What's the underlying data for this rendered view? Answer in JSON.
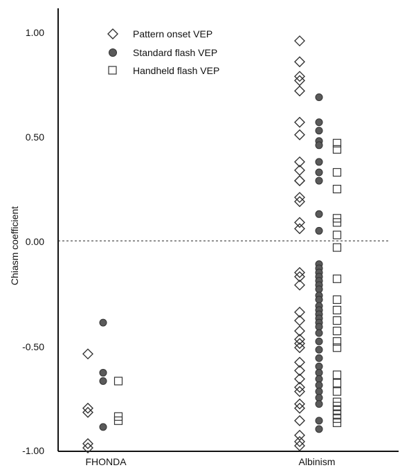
{
  "chart_data": {
    "type": "scatter",
    "ylabel": "Chiasm coefficient",
    "xlabel": "",
    "ylim": [
      -1.0,
      1.0
    ],
    "yticks": [
      "1.00",
      "0.50",
      "0.00",
      "-0.50",
      "-1.00"
    ],
    "ytick_values": [
      1.0,
      0.5,
      0.0,
      -0.5,
      -1.0
    ],
    "categories": [
      "FHONDA",
      "Albinism"
    ],
    "reference_line": {
      "y": 0.0,
      "style": "dashed"
    },
    "grid": false,
    "legend_position": "top-left",
    "series": [
      {
        "name": "Pattern onset VEP",
        "marker": "diamond-open",
        "values": {
          "FHONDA": [
            -0.54,
            -0.8,
            -0.82,
            -0.97,
            -0.99
          ],
          "Albinism": [
            0.96,
            0.86,
            0.79,
            0.77,
            0.72,
            0.57,
            0.51,
            0.38,
            0.34,
            0.29,
            0.29,
            0.21,
            0.19,
            0.09,
            0.06,
            -0.15,
            -0.17,
            -0.21,
            -0.34,
            -0.38,
            -0.43,
            -0.47,
            -0.49,
            -0.51,
            -0.58,
            -0.62,
            -0.66,
            -0.7,
            -0.72,
            -0.78,
            -0.8,
            -0.86,
            -0.93,
            -0.96,
            -0.98
          ]
        }
      },
      {
        "name": "Standard flash VEP",
        "marker": "circle-filled",
        "values": {
          "FHONDA": [
            -0.39,
            -0.63,
            -0.67,
            -0.89
          ],
          "Albinism": [
            0.69,
            0.57,
            0.53,
            0.48,
            0.46,
            0.38,
            0.33,
            0.29,
            0.13,
            0.05,
            -0.11,
            -0.13,
            -0.15,
            -0.17,
            -0.19,
            -0.21,
            -0.23,
            -0.26,
            -0.28,
            -0.31,
            -0.33,
            -0.35,
            -0.37,
            -0.39,
            -0.41,
            -0.44,
            -0.48,
            -0.52,
            -0.56,
            -0.6,
            -0.63,
            -0.66,
            -0.69,
            -0.72,
            -0.75,
            -0.78,
            -0.86,
            -0.9
          ]
        }
      },
      {
        "name": "Handheld flash VEP",
        "marker": "square-open",
        "values": {
          "FHONDA": [
            -0.67,
            -0.84,
            -0.86
          ],
          "Albinism": [
            0.47,
            0.44,
            0.33,
            0.25,
            0.11,
            0.09,
            0.03,
            -0.03,
            -0.18,
            -0.28,
            -0.33,
            -0.38,
            -0.43,
            -0.48,
            -0.51,
            -0.64,
            -0.68,
            -0.72,
            -0.77,
            -0.79,
            -0.81,
            -0.83,
            -0.85,
            -0.87
          ]
        }
      }
    ]
  }
}
